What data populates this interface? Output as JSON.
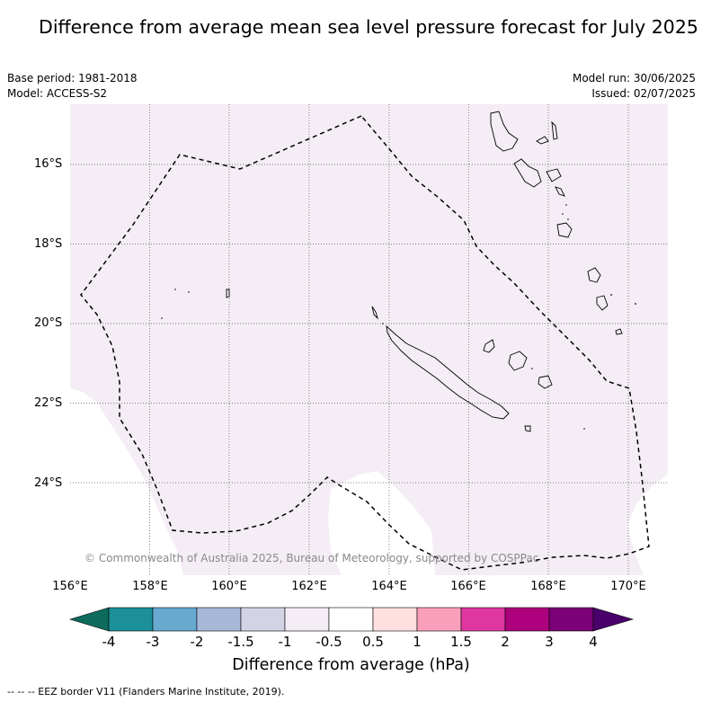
{
  "title": "Difference from average mean sea level pressure forecast for July 2025",
  "base_period": "Base period: 1981-2018",
  "model": "Model: ACCESS-S2",
  "model_run": "Model run: 30/06/2025",
  "issued": "Issued: 02/07/2025",
  "lat_labels": [
    "16°S",
    "18°S",
    "20°S",
    "22°S",
    "24°S"
  ],
  "lon_labels": [
    "156°E",
    "158°E",
    "160°E",
    "162°E",
    "164°E",
    "166°E",
    "168°E",
    "170°E"
  ],
  "copyright": "© Commonwealth of Australia 2025, Bureau of Meteorology, supported by COSPPac",
  "colorbar": {
    "ticks": [
      "-4",
      "-3",
      "-2",
      "-1.5",
      "-1",
      "-0.5",
      "0.5",
      "1",
      "1.5",
      "2",
      "3",
      "4"
    ],
    "colors": [
      "#0e6b5e",
      "#1b9099",
      "#67a9cf",
      "#a6b9d9",
      "#d3d3e6",
      "#f4edf5",
      "#ffffff",
      "#fee0e0",
      "#fba0bc",
      "#df37a0",
      "#ae017e",
      "#7a0177",
      "#49006a"
    ],
    "label": "Difference from average (hPa)"
  },
  "map_fill_color": "#f4edf5",
  "eez_legend": "-- -- -- EEZ border V11 (Flanders Marine Institute, 2019)."
}
